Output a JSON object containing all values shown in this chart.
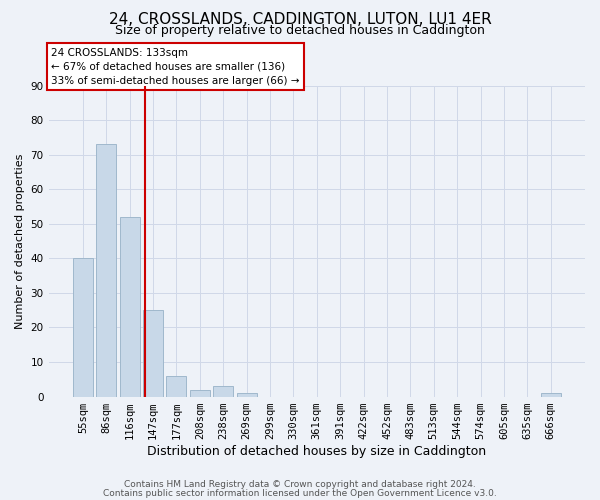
{
  "title": "24, CROSSLANDS, CADDINGTON, LUTON, LU1 4ER",
  "subtitle": "Size of property relative to detached houses in Caddington",
  "xlabel": "Distribution of detached houses by size in Caddington",
  "ylabel": "Number of detached properties",
  "footer_line1": "Contains HM Land Registry data © Crown copyright and database right 2024.",
  "footer_line2": "Contains public sector information licensed under the Open Government Licence v3.0.",
  "bin_labels": [
    "55sqm",
    "86sqm",
    "116sqm",
    "147sqm",
    "177sqm",
    "208sqm",
    "238sqm",
    "269sqm",
    "299sqm",
    "330sqm",
    "361sqm",
    "391sqm",
    "422sqm",
    "452sqm",
    "483sqm",
    "513sqm",
    "544sqm",
    "574sqm",
    "605sqm",
    "635sqm",
    "666sqm"
  ],
  "bar_values": [
    40,
    73,
    52,
    25,
    6,
    2,
    3,
    1,
    0,
    0,
    0,
    0,
    0,
    0,
    0,
    0,
    0,
    0,
    0,
    0,
    1
  ],
  "bar_color": "#c8d8e8",
  "bar_edge_color": "#a0b8cc",
  "vline_x": 2.65,
  "vline_color": "#cc0000",
  "annotation_line1": "24 CROSSLANDS: 133sqm",
  "annotation_line2": "← 67% of detached houses are smaller (136)",
  "annotation_line3": "33% of semi-detached houses are larger (66) →",
  "annotation_box_color": "#ffffff",
  "annotation_box_edge": "#cc0000",
  "ylim": [
    0,
    90
  ],
  "yticks": [
    0,
    10,
    20,
    30,
    40,
    50,
    60,
    70,
    80,
    90
  ],
  "grid_color": "#d0d8e8",
  "bg_color": "#eef2f8",
  "title_fontsize": 11,
  "subtitle_fontsize": 9,
  "xlabel_fontsize": 9,
  "ylabel_fontsize": 8,
  "tick_fontsize": 7.5,
  "annotation_fontsize": 7.5,
  "footer_fontsize": 6.5
}
